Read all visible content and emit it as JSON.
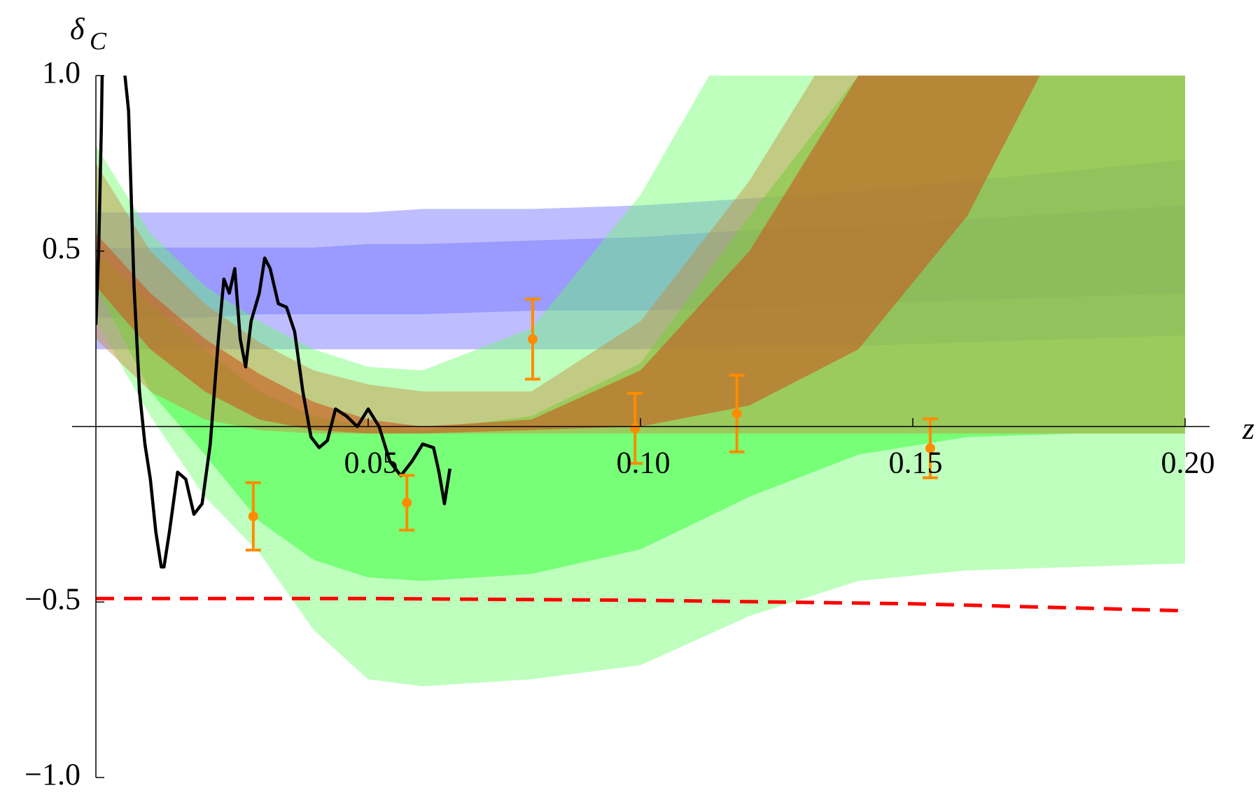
{
  "chart_data": {
    "type": "line",
    "ylabel": "δ",
    "ylabel_sub": "C",
    "xlabel": "z",
    "xlim": [
      0,
      0.2
    ],
    "ylim": [
      -1,
      1
    ],
    "xticks": [
      0.05,
      {
        "value": 0.1,
        "label": "0.10"
      },
      0.15,
      {
        "value": 0.2,
        "label": "0.20"
      }
    ],
    "yticks": [
      {
        "value": -1,
        "label": "−1.0"
      },
      {
        "value": -0.5,
        "label": "−0.5"
      },
      0.5,
      {
        "value": 1,
        "label": "1.0"
      }
    ],
    "series": [
      {
        "type": "band",
        "color": "rgba(110,110,255,0.45)",
        "x": [
          0,
          0.01,
          0.02,
          0.03,
          0.04,
          0.05,
          0.06,
          0.08,
          0.1,
          0.12,
          0.14,
          0.16,
          0.18,
          0.2
        ],
        "upper": [
          0.61,
          0.61,
          0.61,
          0.61,
          0.61,
          0.61,
          0.62,
          0.62,
          0.63,
          0.65,
          0.67,
          0.7,
          0.73,
          0.76
        ],
        "lower": [
          0.22,
          0.22,
          0.22,
          0.22,
          0.22,
          0.22,
          0.22,
          0.22,
          0.22,
          0.23,
          0.23,
          0.24,
          0.25,
          0.26
        ]
      },
      {
        "type": "band",
        "color": "rgba(110,110,255,0.45)",
        "x": [
          0,
          0.01,
          0.02,
          0.03,
          0.04,
          0.05,
          0.06,
          0.08,
          0.1,
          0.12,
          0.14,
          0.16,
          0.18,
          0.2
        ],
        "upper": [
          0.51,
          0.51,
          0.51,
          0.51,
          0.51,
          0.52,
          0.52,
          0.53,
          0.54,
          0.56,
          0.57,
          0.59,
          0.61,
          0.63
        ],
        "lower": [
          0.31,
          0.31,
          0.31,
          0.32,
          0.32,
          0.32,
          0.32,
          0.33,
          0.33,
          0.34,
          0.35,
          0.36,
          0.37,
          0.38
        ]
      },
      {
        "type": "band",
        "color": "rgba(100,255,100,0.42)",
        "x": [
          0,
          0.01,
          0.02,
          0.03,
          0.04,
          0.05,
          0.06,
          0.08,
          0.1,
          0.12,
          0.14,
          0.16,
          0.18,
          0.2
        ],
        "upper": [
          0.8,
          0.55,
          0.4,
          0.3,
          0.22,
          0.17,
          0.16,
          0.28,
          0.66,
          1.2,
          1.8,
          2.5,
          3.2,
          4.0
        ],
        "lower": [
          0.3,
          0.03,
          -0.2,
          -0.36,
          -0.58,
          -0.72,
          -0.74,
          -0.72,
          -0.68,
          -0.54,
          -0.44,
          -0.41,
          -0.4,
          -0.39
        ]
      },
      {
        "type": "band",
        "color": "rgba(60,255,60,0.55)",
        "x": [
          0,
          0.01,
          0.02,
          0.03,
          0.04,
          0.05,
          0.06,
          0.08,
          0.1,
          0.12,
          0.14,
          0.16,
          0.18,
          0.2
        ],
        "upper": [
          0.5,
          0.35,
          0.22,
          0.1,
          0.03,
          0.0,
          -0.01,
          0.03,
          0.18,
          0.6,
          1.0,
          1.6,
          2.2,
          2.9
        ],
        "lower": [
          0.4,
          0.1,
          -0.08,
          -0.27,
          -0.38,
          -0.43,
          -0.44,
          -0.42,
          -0.35,
          -0.2,
          -0.08,
          -0.03,
          -0.02,
          -0.02
        ]
      },
      {
        "type": "band",
        "color": "rgba(200,140,60,0.45)",
        "x": [
          0,
          0.01,
          0.02,
          0.03,
          0.04,
          0.05,
          0.06,
          0.08,
          0.1,
          0.12,
          0.14,
          0.16,
          0.18,
          0.2
        ],
        "upper": [
          0.75,
          0.5,
          0.35,
          0.24,
          0.16,
          0.12,
          0.1,
          0.1,
          0.3,
          0.7,
          1.2,
          1.8,
          2.4,
          3.0
        ],
        "lower": [
          0.25,
          0.1,
          0.02,
          -0.01,
          -0.02,
          -0.02,
          -0.02,
          -0.02,
          -0.02,
          -0.02,
          -0.02,
          -0.02,
          -0.02,
          -0.02
        ]
      },
      {
        "type": "band",
        "color": "rgba(200,90,30,0.6)",
        "x": [
          0,
          0.01,
          0.02,
          0.03,
          0.04,
          0.05,
          0.06,
          0.08,
          0.1,
          0.12,
          0.14,
          0.16,
          0.18,
          0.2
        ],
        "upper": [
          0.55,
          0.38,
          0.25,
          0.15,
          0.07,
          0.02,
          0.0,
          0.02,
          0.16,
          0.5,
          1.0,
          1.6,
          2.2,
          2.8
        ],
        "lower": [
          0.4,
          0.22,
          0.1,
          0.02,
          -0.01,
          -0.02,
          -0.02,
          -0.01,
          0.0,
          0.06,
          0.22,
          0.6,
          1.2,
          1.8
        ]
      },
      {
        "type": "line",
        "color": "#ff0000",
        "dashed": true,
        "x": [
          0,
          0.05,
          0.1,
          0.15,
          0.2
        ],
        "values": [
          -0.49,
          -0.49,
          -0.495,
          -0.505,
          -0.525
        ]
      },
      {
        "type": "line",
        "color": "#000000",
        "x": [
          0,
          0.0005,
          0.001,
          0.0012,
          0.005,
          0.006,
          0.007,
          0.008,
          0.009,
          0.01,
          0.011,
          0.012,
          0.0125,
          0.0135,
          0.015,
          0.0165,
          0.018,
          0.0195,
          0.021,
          0.0225,
          0.0235,
          0.0245,
          0.0255,
          0.0265,
          0.0275,
          0.0285,
          0.03,
          0.031,
          0.032,
          0.0335,
          0.035,
          0.0365,
          0.038,
          0.0395,
          0.041,
          0.0425,
          0.044,
          0.046,
          0.048,
          0.05,
          0.052,
          0.054,
          0.056,
          0.058,
          0.06,
          0.062,
          0.063,
          0.064,
          0.065
        ],
        "values": [
          0.29,
          0.5,
          0.85,
          1.05,
          1.05,
          0.9,
          0.4,
          0.1,
          -0.05,
          -0.15,
          -0.3,
          -0.4,
          -0.4,
          -0.3,
          -0.13,
          -0.15,
          -0.25,
          -0.22,
          -0.05,
          0.25,
          0.42,
          0.38,
          0.45,
          0.25,
          0.17,
          0.3,
          0.38,
          0.48,
          0.45,
          0.35,
          0.34,
          0.27,
          0.1,
          -0.03,
          -0.06,
          -0.04,
          0.05,
          0.03,
          0.0,
          0.05,
          0.0,
          -0.1,
          -0.14,
          -0.1,
          -0.05,
          -0.06,
          -0.13,
          -0.22,
          -0.12
        ]
      },
      {
        "type": "errorbar",
        "color": "#ff8c00",
        "x": [
          0.0289,
          0.0571,
          0.0802,
          0.099,
          0.1177,
          0.1532
        ],
        "values": [
          -0.256,
          -0.217,
          0.249,
          -0.005,
          0.037,
          -0.062
        ],
        "errors": [
          0.096,
          0.078,
          0.114,
          0.1,
          0.109,
          0.084
        ]
      }
    ]
  }
}
